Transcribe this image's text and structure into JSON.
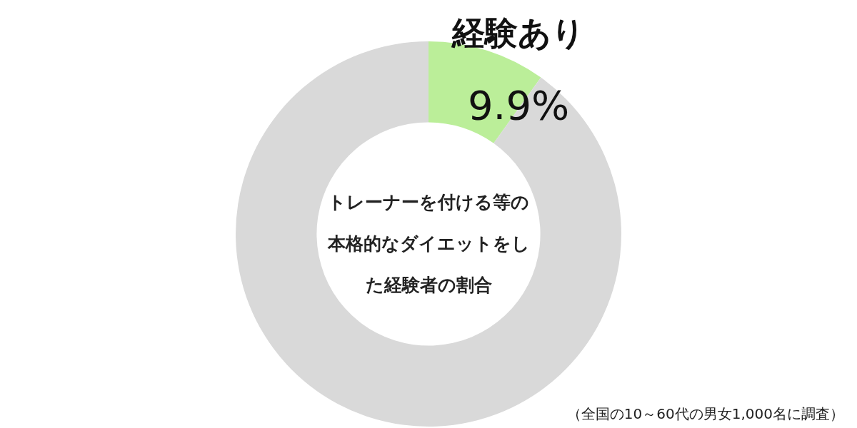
{
  "chart_data": {
    "type": "donut",
    "title": "トレーナーを付ける等の本格的なダイエットをした経験者の割合",
    "categories": [
      "経験あり",
      null
    ],
    "values": [
      9.9,
      90.1
    ],
    "colors": [
      "#bbee99",
      "#d9d9d9"
    ],
    "value_labels": [
      "9.9%",
      null
    ],
    "annotations": [
      "（全国の10～60代の男女1,000名に調査）"
    ],
    "legend": false
  }
}
